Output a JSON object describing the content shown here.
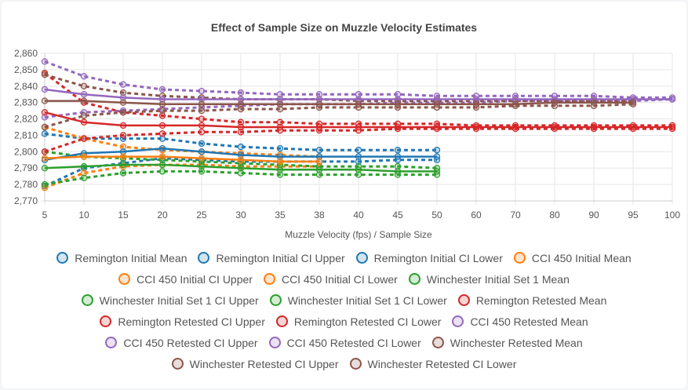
{
  "chart_data": {
    "type": "line",
    "title": "Effect of Sample Size on Muzzle Velocity Estimates",
    "xlabel": "Muzzle Velocity (fps) / Sample Size",
    "ylabel": "",
    "x": [
      5,
      10,
      15,
      20,
      25,
      30,
      35,
      38,
      40,
      45,
      50,
      60,
      70,
      80,
      90,
      95,
      100
    ],
    "ylim": [
      2770,
      2860
    ],
    "yticks": [
      "2,770",
      "2,780",
      "2,790",
      "2,800",
      "2,810",
      "2,820",
      "2,830",
      "2,840",
      "2,850",
      "2,860"
    ],
    "series": [
      {
        "name": "Remington Initial Mean",
        "color": "#1f77b4",
        "dashed": false,
        "values": [
          2795,
          2799,
          2800,
          2802,
          2800,
          2798,
          2797,
          2797,
          2797,
          2797,
          2797,
          null,
          null,
          null,
          null,
          null,
          null
        ]
      },
      {
        "name": "Remington Initial CI Upper",
        "color": "#1f77b4",
        "dashed": true,
        "values": [
          2811,
          2808,
          2808,
          2808,
          2805,
          2803,
          2802,
          2801,
          2801,
          2801,
          2801,
          null,
          null,
          null,
          null,
          null,
          null
        ]
      },
      {
        "name": "Remington Initial CI Lower",
        "color": "#1f77b4",
        "dashed": true,
        "values": [
          2779,
          2790,
          2793,
          2796,
          2795,
          2794,
          2794,
          2794,
          2794,
          2795,
          2795,
          null,
          null,
          null,
          null,
          null,
          null
        ]
      },
      {
        "name": "CCI 450 Initial Mean",
        "color": "#ff7f0e",
        "dashed": false,
        "values": [
          2796,
          2797,
          2797,
          2797,
          2796,
          2795,
          2794,
          2794,
          null,
          null,
          null,
          null,
          null,
          null,
          null,
          null,
          null
        ]
      },
      {
        "name": "CCI 450 Initial CI Upper",
        "color": "#ff7f0e",
        "dashed": true,
        "values": [
          2815,
          2808,
          2803,
          2801,
          2800,
          2799,
          2798,
          2797,
          null,
          null,
          null,
          null,
          null,
          null,
          null,
          null,
          null
        ]
      },
      {
        "name": "CCI 450 Initial CI Lower",
        "color": "#ff7f0e",
        "dashed": true,
        "values": [
          2778,
          2787,
          2791,
          2792,
          2792,
          2791,
          2791,
          2791,
          null,
          null,
          null,
          null,
          null,
          null,
          null,
          null,
          null
        ]
      },
      {
        "name": "Winchester Initial Set 1 Mean",
        "color": "#2ca02c",
        "dashed": false,
        "values": [
          2790,
          2791,
          2792,
          2792,
          2791,
          2790,
          2789,
          2789,
          2789,
          2788,
          2788,
          null,
          null,
          null,
          null,
          null,
          null
        ]
      },
      {
        "name": "Winchester Initial Set 1 CI Upper",
        "color": "#2ca02c",
        "dashed": true,
        "values": [
          2800,
          2797,
          2796,
          2795,
          2794,
          2793,
          2792,
          2791,
          2791,
          2791,
          2790,
          null,
          null,
          null,
          null,
          null,
          null
        ]
      },
      {
        "name": "Winchester Initial Set 1 CI Lower",
        "color": "#2ca02c",
        "dashed": true,
        "values": [
          2780,
          2784,
          2787,
          2788,
          2788,
          2787,
          2786,
          2786,
          2786,
          2786,
          2786,
          null,
          null,
          null,
          null,
          null,
          null
        ]
      },
      {
        "name": "Remington Retested Mean",
        "color": "#d62728",
        "dashed": false,
        "values": [
          2824,
          2818,
          2816,
          2816,
          2816,
          2815,
          2815,
          2815,
          2815,
          2815,
          2815,
          2815,
          2815,
          2815,
          2815,
          2815,
          2815
        ]
      },
      {
        "name": "Remington Retested CI Upper",
        "color": "#d62728",
        "dashed": true,
        "values": [
          2848,
          2830,
          2824,
          2822,
          2820,
          2818,
          2818,
          2817,
          2817,
          2817,
          2817,
          2816,
          2816,
          2816,
          2816,
          2816,
          2816
        ]
      },
      {
        "name": "Remington Retested CI Lower",
        "color": "#d62728",
        "dashed": true,
        "values": [
          2800,
          2808,
          2810,
          2811,
          2812,
          2812,
          2813,
          2813,
          2813,
          2814,
          2814,
          2814,
          2814,
          2814,
          2814,
          2814,
          2814
        ]
      },
      {
        "name": "CCI 450 Retested Mean",
        "color": "#9467bd",
        "dashed": false,
        "values": [
          2838,
          2835,
          2833,
          2832,
          2832,
          2832,
          2832,
          2832,
          2832,
          2832,
          2832,
          2832,
          2832,
          2832,
          2832,
          2832,
          2832
        ]
      },
      {
        "name": "CCI 450 Retested CI Upper",
        "color": "#9467bd",
        "dashed": true,
        "values": [
          2855,
          2846,
          2841,
          2838,
          2837,
          2836,
          2835,
          2835,
          2835,
          2835,
          2834,
          2834,
          2834,
          2834,
          2834,
          2833,
          2833
        ]
      },
      {
        "name": "CCI 450 Retested CI Lower",
        "color": "#9467bd",
        "dashed": true,
        "values": [
          2821,
          2824,
          2825,
          2826,
          2827,
          2828,
          2829,
          2829,
          2829,
          2830,
          2830,
          2830,
          2831,
          2831,
          2831,
          2831,
          2832
        ]
      },
      {
        "name": "Winchester Retested Mean",
        "color": "#8c564b",
        "dashed": false,
        "values": [
          2831,
          2831,
          2830,
          2829,
          2829,
          2829,
          2829,
          2829,
          2829,
          2829,
          2829,
          2829,
          2829,
          2830,
          2830,
          2830,
          null
        ]
      },
      {
        "name": "Winchester Retested CI Upper",
        "color": "#8c564b",
        "dashed": true,
        "values": [
          2847,
          2840,
          2836,
          2834,
          2833,
          2832,
          2832,
          2832,
          2831,
          2831,
          2831,
          2831,
          2831,
          2831,
          2831,
          2831,
          null
        ]
      },
      {
        "name": "Winchester Retested CI Lower",
        "color": "#8c564b",
        "dashed": true,
        "values": [
          2815,
          2822,
          2824,
          2825,
          2825,
          2826,
          2826,
          2827,
          2827,
          2827,
          2827,
          2827,
          2828,
          2828,
          2828,
          2829,
          null
        ]
      }
    ]
  }
}
